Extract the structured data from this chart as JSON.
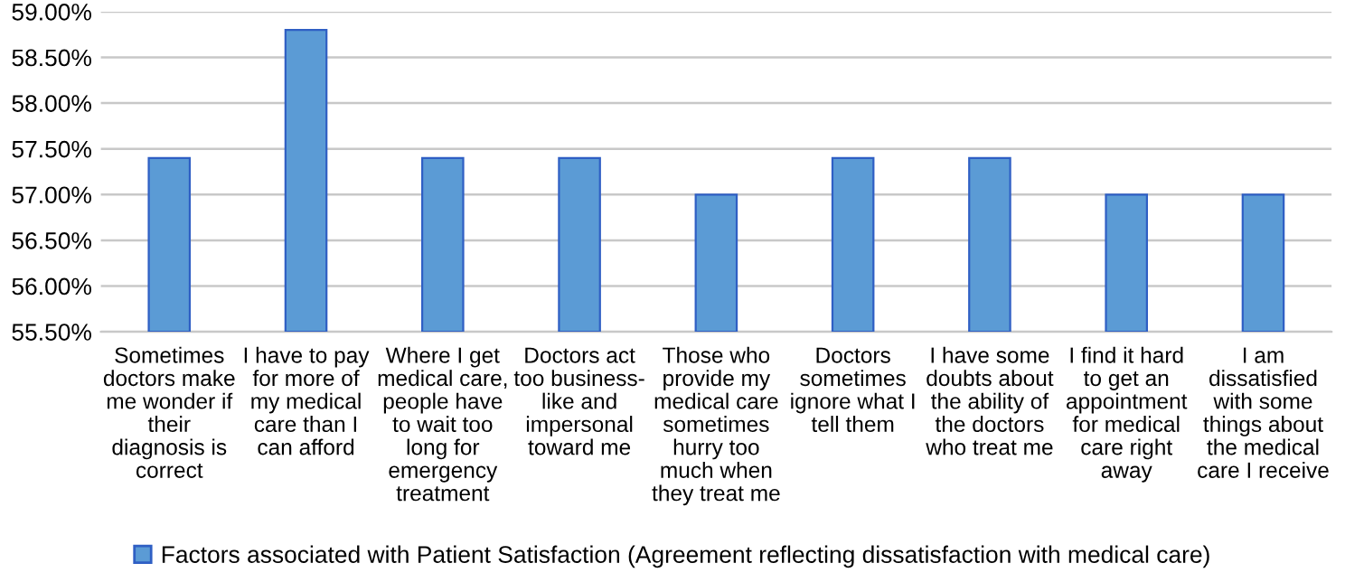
{
  "chart_data": {
    "type": "bar",
    "categories": [
      "Sometimes\ndoctors make\nme wonder if\ntheir\ndiagnosis is\ncorrect",
      "I have to pay\nfor more of\nmy medical\ncare than I\ncan afford",
      "Where I get\nmedical care,\npeople have\nto wait too\nlong for\nemergency\ntreatment",
      "Doctors act\ntoo business-\nlike and\nimpersonal\ntoward me",
      "Those who\nprovide my\nmedical care\nsometimes\nhurry too\nmuch when\nthey treat me",
      "Doctors\nsometimes\nignore what I\ntell them",
      "I have some\ndoubts about\nthe ability of\nthe doctors\nwho treat me",
      "I find it hard\nto get an\nappointment\nfor medical\ncare right\naway",
      "I am\ndissatisfied\nwith some\nthings about\nthe medical\ncare I receive"
    ],
    "series": [
      {
        "name": "Factors associated with Patient Satisfaction (Agreement reflecting dissatisfaction with medical care)",
        "color": "#5b9bd5",
        "values": [
          57.4,
          58.8,
          57.4,
          57.4,
          57.0,
          57.4,
          57.4,
          57.0,
          57.0
        ]
      }
    ],
    "ylim": [
      55.5,
      59
    ],
    "yticks": [
      {
        "value": 55.5,
        "label": "55.50%"
      },
      {
        "value": 56,
        "label": "56.00%"
      },
      {
        "value": 56.5,
        "label": "56.50%"
      },
      {
        "value": 57,
        "label": "57.00%"
      },
      {
        "value": 57.5,
        "label": "57.50%"
      },
      {
        "value": 58,
        "label": "58.00%"
      },
      {
        "value": 58.5,
        "label": "58.50%"
      },
      {
        "value": 59,
        "label": "59.00%"
      }
    ],
    "grid": "y",
    "legend": "bottom"
  }
}
